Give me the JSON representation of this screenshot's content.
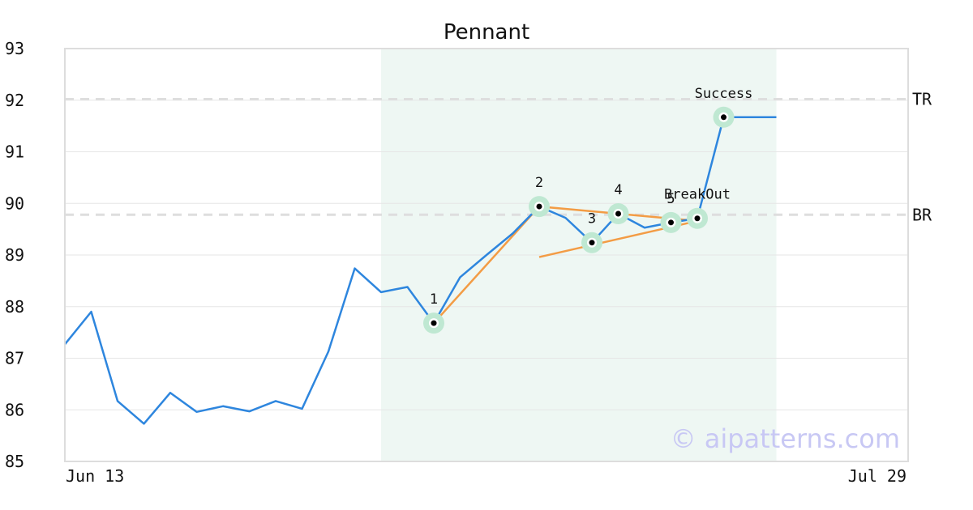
{
  "chart_data": {
    "type": "line",
    "title": "Pennant",
    "xlabel": "",
    "ylabel": "",
    "x_ticks": [
      "Jun 13",
      "Jul 29"
    ],
    "x_range": [
      0,
      28
    ],
    "ylim": [
      85,
      93
    ],
    "y_ticks": [
      85,
      86,
      87,
      88,
      89,
      90,
      91,
      92,
      93
    ],
    "grid": true,
    "series": [
      {
        "color": "#2e86de",
        "points": [
          [
            0,
            87.27
          ],
          [
            1,
            87.9
          ],
          [
            2,
            86.17
          ],
          [
            3,
            85.73
          ],
          [
            4,
            86.33
          ],
          [
            5,
            85.96
          ],
          [
            6,
            86.07
          ],
          [
            7,
            85.97
          ],
          [
            8,
            86.17
          ],
          [
            9,
            86.02
          ],
          [
            10,
            87.13
          ],
          [
            11,
            88.74
          ],
          [
            12,
            88.28
          ],
          [
            13,
            88.38
          ],
          [
            14,
            87.68
          ],
          [
            15,
            88.57
          ],
          [
            16,
            89.0
          ],
          [
            17,
            89.42
          ],
          [
            18,
            89.94
          ],
          [
            19,
            89.72
          ],
          [
            20,
            89.24
          ],
          [
            21,
            89.8
          ],
          [
            22,
            89.53
          ],
          [
            23,
            89.63
          ],
          [
            24,
            89.71
          ],
          [
            25,
            91.67
          ],
          [
            26,
            91.67
          ],
          [
            27,
            91.67
          ]
        ]
      }
    ],
    "pattern_region": {
      "x_start": 12,
      "x_end": 27,
      "color": "#eef7f3"
    },
    "levels": [
      {
        "label": "TR",
        "value": 92.02
      },
      {
        "label": "BR",
        "value": 89.78
      }
    ],
    "trend_lines": [
      {
        "color": "#f39c45",
        "points": [
          [
            14,
            87.68
          ],
          [
            18,
            89.94
          ]
        ]
      },
      {
        "color": "#f39c45",
        "points": [
          [
            18,
            89.94
          ],
          [
            24,
            89.66
          ]
        ]
      },
      {
        "color": "#f39c45",
        "points": [
          [
            18,
            88.96
          ],
          [
            24,
            89.66
          ]
        ]
      }
    ],
    "annotations": [
      {
        "label": "1",
        "x": 14,
        "y": 87.68,
        "label_pos": "above"
      },
      {
        "label": "2",
        "x": 18,
        "y": 89.94,
        "label_pos": "above"
      },
      {
        "label": "3",
        "x": 20,
        "y": 89.24,
        "label_pos": "above"
      },
      {
        "label": "4",
        "x": 21,
        "y": 89.8,
        "label_pos": "above"
      },
      {
        "label": "5",
        "x": 23,
        "y": 89.63,
        "label_pos": "above"
      },
      {
        "label": "BreakOut",
        "x": 24,
        "y": 89.71,
        "label_pos": "above"
      },
      {
        "label": "Success",
        "x": 25,
        "y": 91.67,
        "label_pos": "above"
      }
    ],
    "watermark": "© aipatterns.com"
  }
}
